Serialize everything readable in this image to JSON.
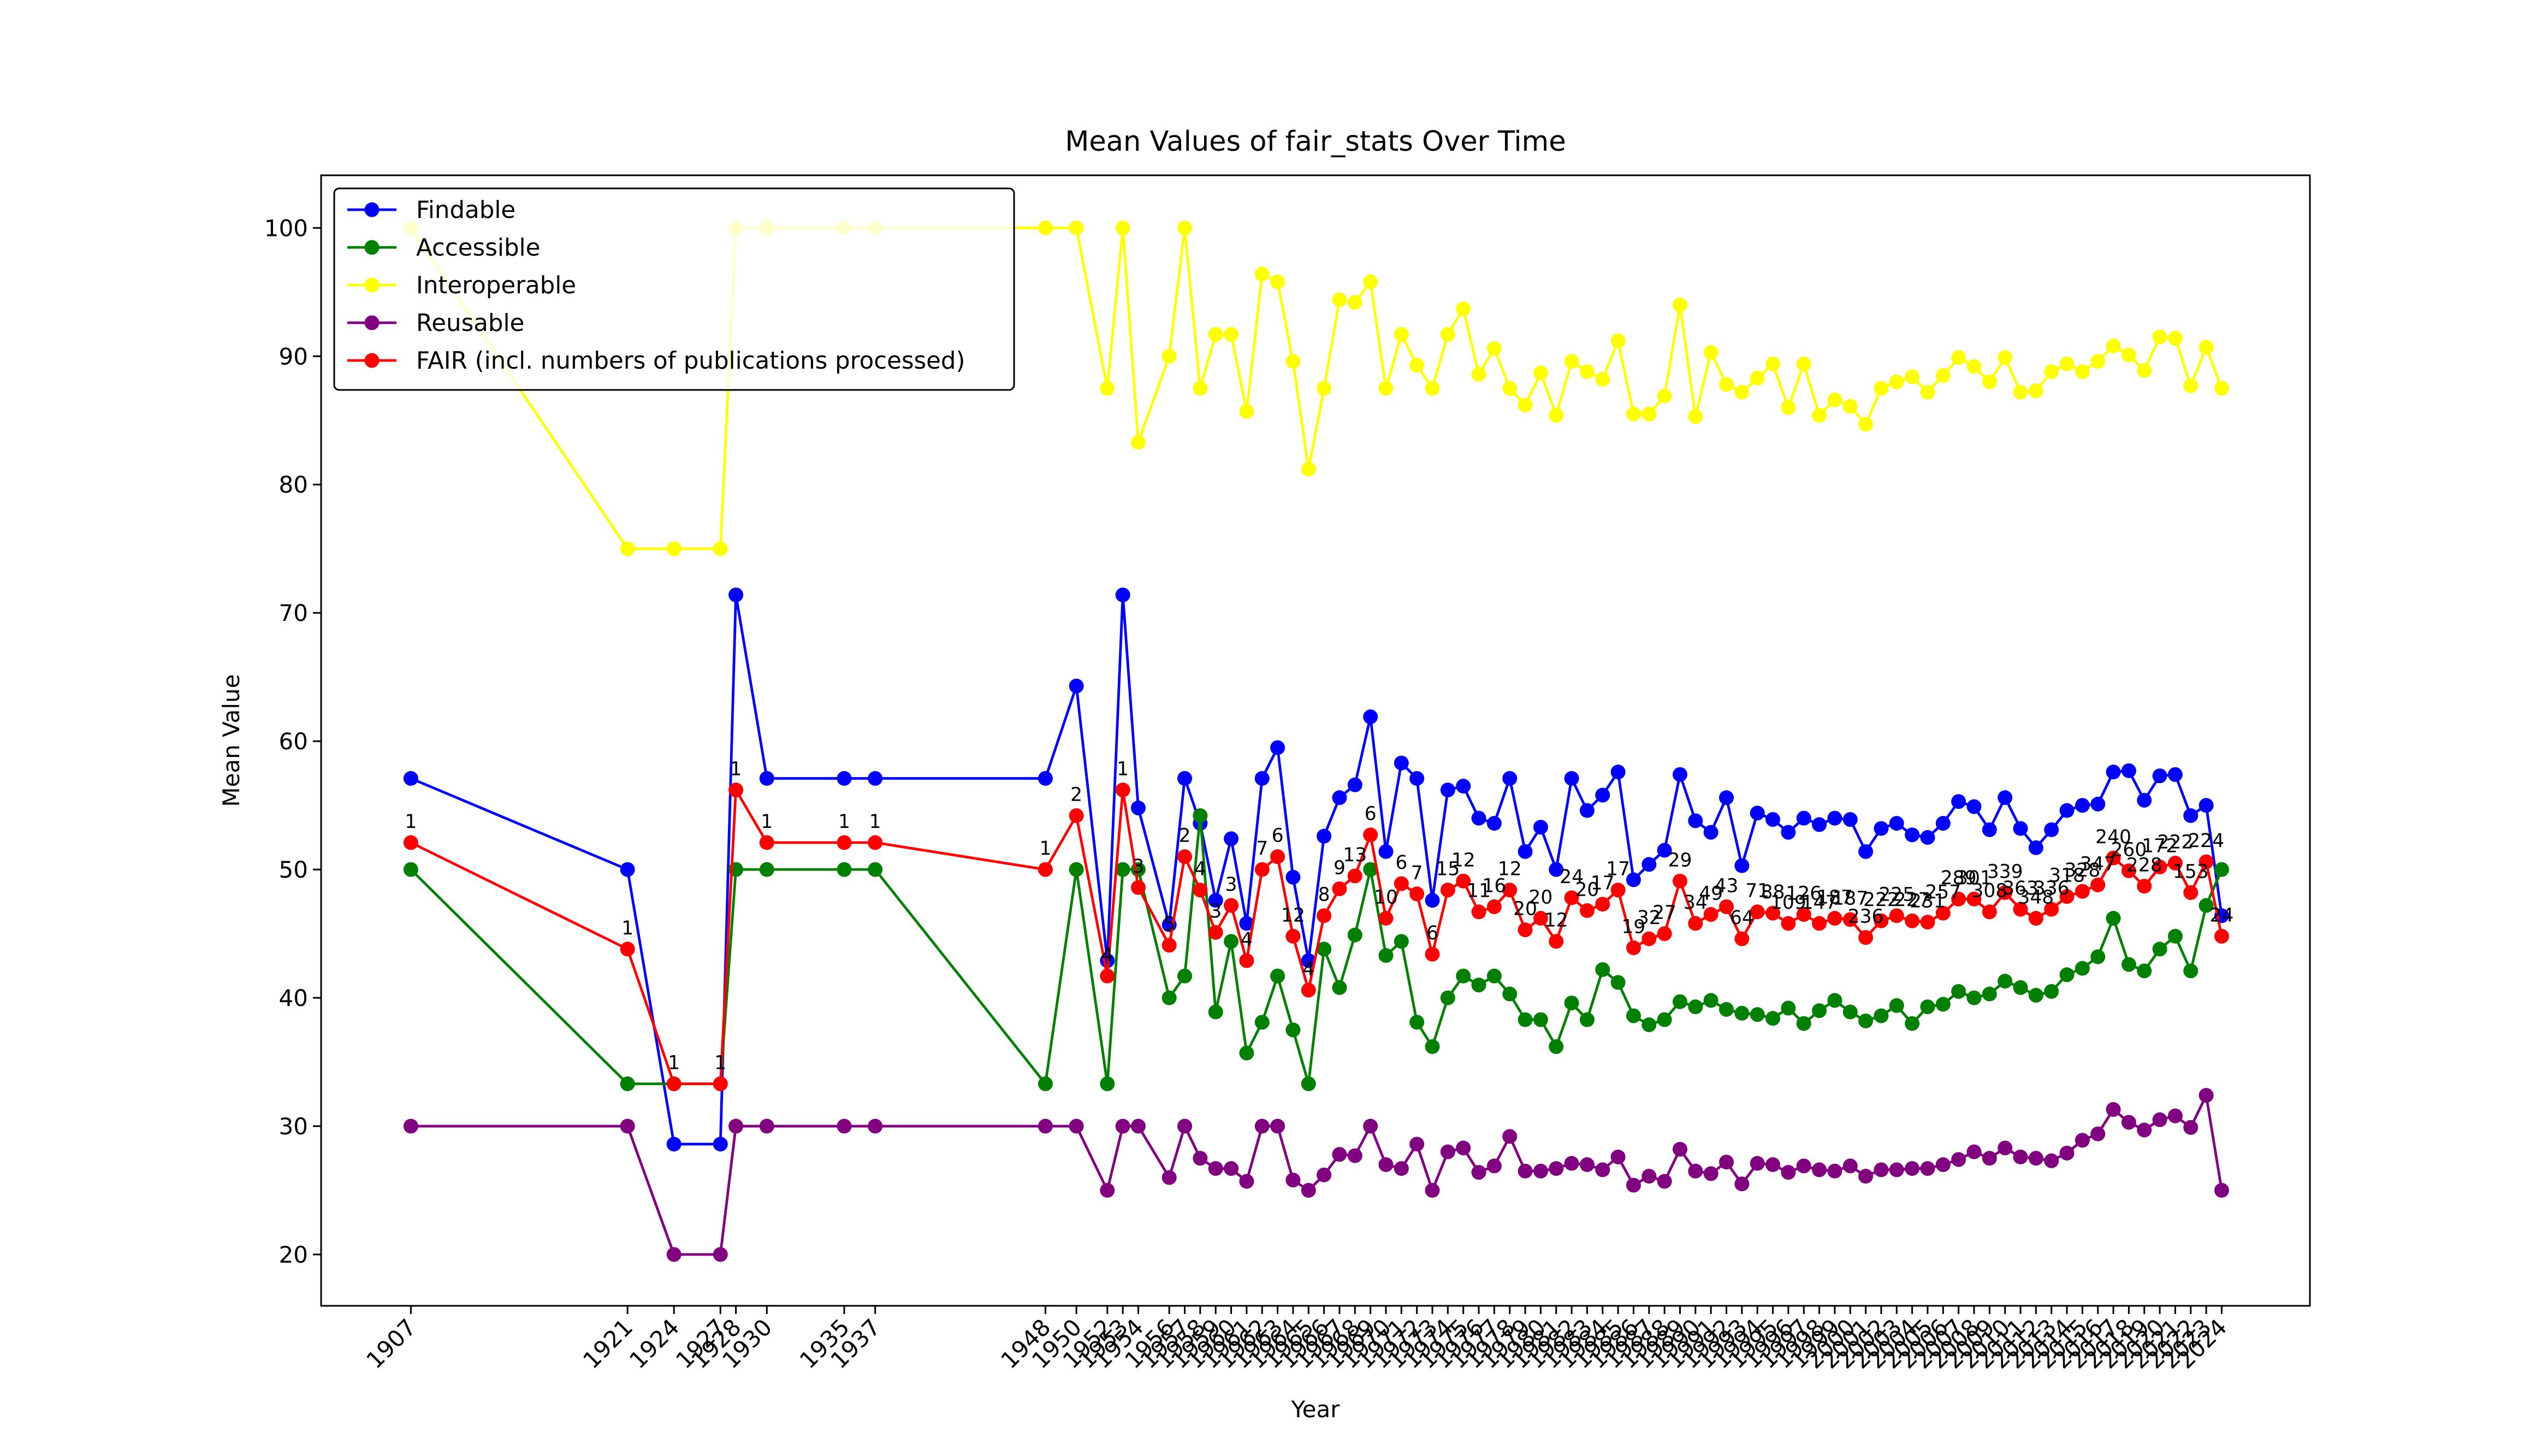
{
  "chart_data": {
    "type": "line",
    "title": "Mean Values of fair_stats Over Time",
    "x_label": "Year",
    "y_label": "Mean Value",
    "x": [
      1907,
      1921,
      1924,
      1927,
      1928,
      1930,
      1935,
      1937,
      1948,
      1950,
      1952,
      1953,
      1954,
      1956,
      1957,
      1958,
      1959,
      1960,
      1961,
      1962,
      1963,
      1964,
      1965,
      1966,
      1967,
      1968,
      1969,
      1970,
      1971,
      1972,
      1973,
      1974,
      1975,
      1976,
      1977,
      1978,
      1979,
      1980,
      1981,
      1982,
      1983,
      1984,
      1985,
      1986,
      1987,
      1988,
      1989,
      1990,
      1991,
      1992,
      1993,
      1994,
      1995,
      1996,
      1997,
      1998,
      1999,
      2000,
      2001,
      2002,
      2003,
      2004,
      2005,
      2006,
      2007,
      2008,
      2009,
      2010,
      2011,
      2012,
      2013,
      2014,
      2015,
      2016,
      2017,
      2018,
      2019,
      2020,
      2021,
      2022,
      2023,
      2024
    ],
    "xlim": [
      1901.2,
      2029.7
    ],
    "xticks": [
      1907,
      1921,
      1924,
      1927,
      1928,
      1930,
      1935,
      1937,
      1948,
      1950,
      1952,
      1953,
      1954,
      1956,
      1957,
      1958,
      1959,
      1960,
      1961,
      1962,
      1963,
      1964,
      1965,
      1966,
      1967,
      1968,
      1969,
      1970,
      1971,
      1972,
      1973,
      1974,
      1975,
      1976,
      1977,
      1978,
      1979,
      1980,
      1981,
      1982,
      1983,
      1984,
      1985,
      1986,
      1987,
      1988,
      1989,
      1990,
      1991,
      1992,
      1993,
      1994,
      1995,
      1996,
      1997,
      1998,
      1999,
      2000,
      2001,
      2002,
      2003,
      2004,
      2005,
      2006,
      2007,
      2008,
      2009,
      2010,
      2011,
      2012,
      2013,
      2014,
      2015,
      2016,
      2017,
      2018,
      2019,
      2020,
      2021,
      2022,
      2023,
      2024
    ],
    "ylim": [
      16,
      104.1
    ],
    "yticks": [
      20,
      30,
      40,
      50,
      60,
      70,
      80,
      90,
      100
    ],
    "legend": "upper left",
    "series": [
      {
        "name": "Findable",
        "color": "#0000ff",
        "values": [
          57.1,
          50,
          28.6,
          28.6,
          71.4,
          57.1,
          57.1,
          57.1,
          57.1,
          64.3,
          42.9,
          71.4,
          54.8,
          45.7,
          57.1,
          53.6,
          47.6,
          52.4,
          45.8,
          57.1,
          59.5,
          49.4,
          42.9,
          52.6,
          55.6,
          56.6,
          61.9,
          51.4,
          58.3,
          57.1,
          47.6,
          56.2,
          56.5,
          54.0,
          53.6,
          57.1,
          51.4,
          53.3,
          50.0,
          57.1,
          54.6,
          55.8,
          57.6,
          49.2,
          50.4,
          51.5,
          57.4,
          53.8,
          52.9,
          55.6,
          50.3,
          54.4,
          53.9,
          52.9,
          54.0,
          53.5,
          54.0,
          53.9,
          51.4,
          53.2,
          53.6,
          52.7,
          52.5,
          53.6,
          55.3,
          54.9,
          53.1,
          55.6,
          53.2,
          51.7,
          53.1,
          54.6,
          55.0,
          55.1,
          57.6,
          57.7,
          55.4,
          57.3,
          57.4,
          54.2,
          55.0,
          46.4
        ]
      },
      {
        "name": "Accessible",
        "color": "#008000",
        "values": [
          50,
          33.3,
          33.3,
          33.3,
          50,
          50,
          50,
          50,
          33.3,
          50,
          33.3,
          50,
          50,
          40.0,
          41.7,
          54.2,
          38.9,
          44.4,
          35.7,
          38.1,
          41.7,
          37.5,
          33.3,
          43.8,
          40.8,
          44.9,
          50.0,
          43.3,
          44.4,
          38.1,
          36.2,
          40.0,
          41.7,
          41.0,
          41.7,
          40.3,
          38.3,
          38.3,
          36.2,
          39.6,
          38.3,
          42.2,
          41.2,
          38.6,
          37.9,
          38.3,
          39.7,
          39.3,
          39.8,
          39.1,
          38.8,
          38.7,
          38.4,
          39.2,
          38.0,
          39.0,
          39.8,
          38.9,
          38.2,
          38.6,
          39.4,
          38.0,
          39.3,
          39.5,
          40.5,
          40.0,
          40.3,
          41.3,
          40.8,
          40.2,
          40.5,
          41.8,
          42.3,
          43.2,
          46.2,
          42.6,
          42.1,
          43.8,
          44.8,
          42.1,
          47.2,
          50.0
        ]
      },
      {
        "name": "Interoperable",
        "color": "#ffff00",
        "values": [
          100,
          75,
          75,
          75,
          100,
          100,
          100,
          100,
          100,
          100,
          87.5,
          100,
          83.3,
          90.0,
          100,
          87.5,
          91.7,
          91.7,
          85.7,
          96.4,
          95.8,
          89.6,
          81.2,
          87.5,
          94.4,
          94.2,
          95.8,
          87.5,
          91.7,
          89.3,
          87.5,
          91.7,
          93.7,
          88.6,
          90.6,
          87.5,
          86.2,
          88.7,
          85.4,
          89.6,
          88.8,
          88.2,
          91.2,
          85.5,
          85.5,
          86.9,
          94.0,
          85.3,
          90.3,
          87.8,
          87.2,
          88.3,
          89.4,
          86.0,
          89.4,
          85.4,
          86.6,
          86.1,
          84.7,
          87.5,
          88.0,
          88.4,
          87.2,
          88.5,
          89.9,
          89.2,
          88.0,
          89.9,
          87.2,
          87.3,
          88.8,
          89.4,
          88.8,
          89.6,
          90.8,
          90.1,
          88.9,
          91.5,
          91.4,
          87.7,
          90.7,
          87.5
        ]
      },
      {
        "name": "Reusable",
        "color": "#800080",
        "values": [
          30,
          30,
          20,
          20,
          30,
          30,
          30,
          30,
          30,
          30,
          25,
          30,
          30,
          26.0,
          30,
          27.5,
          26.7,
          26.7,
          25.7,
          30,
          30,
          25.8,
          25,
          26.2,
          27.8,
          27.7,
          30,
          27.0,
          26.7,
          28.6,
          25,
          28.0,
          28.3,
          26.4,
          26.9,
          29.2,
          26.5,
          26.5,
          26.7,
          27.1,
          27.0,
          26.6,
          27.6,
          25.4,
          26.1,
          25.7,
          28.2,
          26.5,
          26.3,
          27.2,
          25.5,
          27.1,
          27.0,
          26.4,
          26.9,
          26.6,
          26.5,
          26.9,
          26.1,
          26.6,
          26.6,
          26.7,
          26.7,
          27.0,
          27.4,
          28.0,
          27.5,
          28.3,
          27.6,
          27.5,
          27.3,
          27.9,
          28.9,
          29.4,
          31.3,
          30.3,
          29.7,
          30.5,
          30.8,
          29.9,
          32.4,
          25.0
        ]
      },
      {
        "name": "FAIR (incl. numbers of publications processed)",
        "color": "#ff0000",
        "values": [
          52.1,
          43.8,
          33.3,
          33.3,
          56.2,
          52.1,
          52.1,
          52.1,
          50.0,
          54.2,
          41.7,
          56.2,
          48.6,
          44.1,
          51.0,
          48.4,
          45.1,
          47.2,
          42.9,
          50.0,
          51.0,
          44.8,
          40.6,
          46.4,
          48.5,
          49.5,
          52.7,
          46.2,
          48.9,
          48.1,
          43.4,
          48.4,
          49.1,
          46.7,
          47.1,
          48.4,
          45.3,
          46.2,
          44.4,
          47.8,
          46.8,
          47.3,
          48.4,
          43.9,
          44.6,
          45.0,
          49.1,
          45.8,
          46.5,
          47.1,
          44.6,
          46.7,
          46.6,
          45.8,
          46.5,
          45.8,
          46.2,
          46.1,
          44.7,
          46.0,
          46.4,
          46.0,
          45.9,
          46.6,
          47.7,
          47.7,
          46.7,
          48.2,
          46.9,
          46.2,
          46.9,
          47.9,
          48.3,
          48.8,
          50.9,
          49.9,
          48.7,
          50.2,
          50.5,
          48.2,
          50.6,
          44.8
        ],
        "labels": [
          "1",
          "1",
          "1",
          "1",
          "1",
          "1",
          "1",
          "1",
          "1",
          "2",
          "4",
          "1",
          "3",
          "5",
          "2",
          "4",
          "3",
          "3",
          "4",
          "7",
          "6",
          "12",
          "4",
          "8",
          "9",
          "13",
          "6",
          "10",
          "6",
          "7",
          "6",
          "15",
          "12",
          "11",
          "16",
          "12",
          "20",
          "20",
          "12",
          "24",
          "20",
          "17",
          "17",
          "19",
          "32",
          "27",
          "29",
          "34",
          "49",
          "43",
          "64",
          "71",
          "88",
          "109",
          "126",
          "147",
          "187",
          "187",
          "236",
          "222",
          "225",
          "227",
          "231",
          "257",
          "289",
          "301",
          "308",
          "339",
          "363",
          "348",
          "336",
          "318",
          "328",
          "347",
          "240",
          "260",
          "228",
          "172",
          "222",
          "153",
          "224",
          "24"
        ]
      }
    ]
  }
}
